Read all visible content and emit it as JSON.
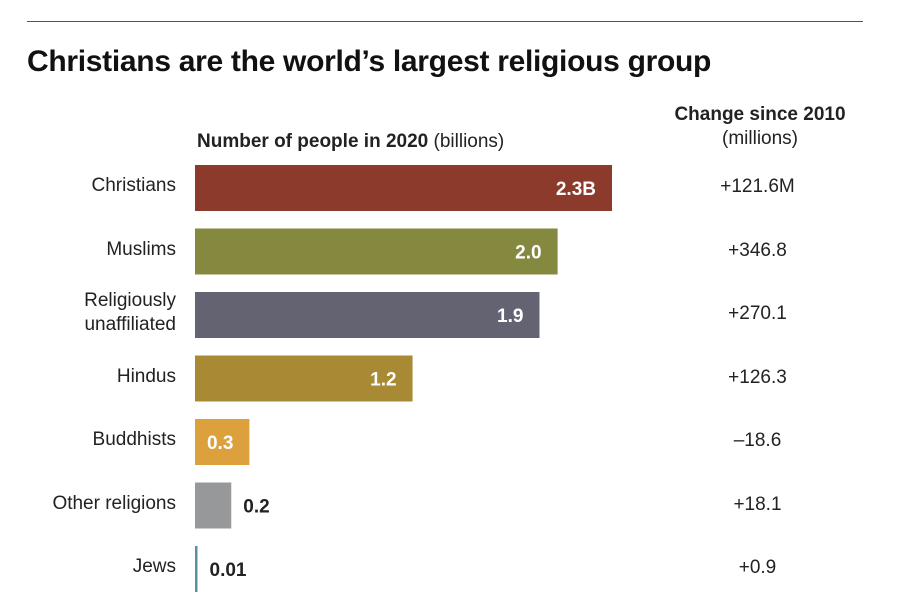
{
  "chart_data": {
    "type": "bar",
    "orientation": "horizontal",
    "title": "Christians are the world’s largest religious group",
    "value_header": "Number of people in 2020",
    "value_unit": "(billions)",
    "change_header": "Change since 2010",
    "change_unit": "(millions)",
    "categories": [
      "Christians",
      "Muslims",
      "Religiously unaffiliated",
      "Hindus",
      "Buddhists",
      "Other religions",
      "Jews"
    ],
    "category_lines": [
      [
        "Christians"
      ],
      [
        "Muslims"
      ],
      [
        "Religiously",
        "unaffiliated"
      ],
      [
        "Hindus"
      ],
      [
        "Buddhists"
      ],
      [
        "Other religions"
      ],
      [
        "Jews"
      ]
    ],
    "values": [
      2.3,
      2.0,
      1.9,
      1.2,
      0.3,
      0.2,
      0.01
    ],
    "value_labels": [
      "2.3B",
      "2.0",
      "1.9",
      "1.2",
      "0.3",
      "0.2",
      "0.01"
    ],
    "changes": [
      "+121.6M",
      "+346.8",
      "+270.1",
      "+126.3",
      "–18.6",
      "+18.1",
      "+0.9"
    ],
    "colors": [
      "#8b3a2b",
      "#85883f",
      "#646372",
      "#a88a35",
      "#dca13d",
      "#97989a",
      "#5d8fa0"
    ],
    "xlim": [
      0,
      2.3
    ]
  }
}
